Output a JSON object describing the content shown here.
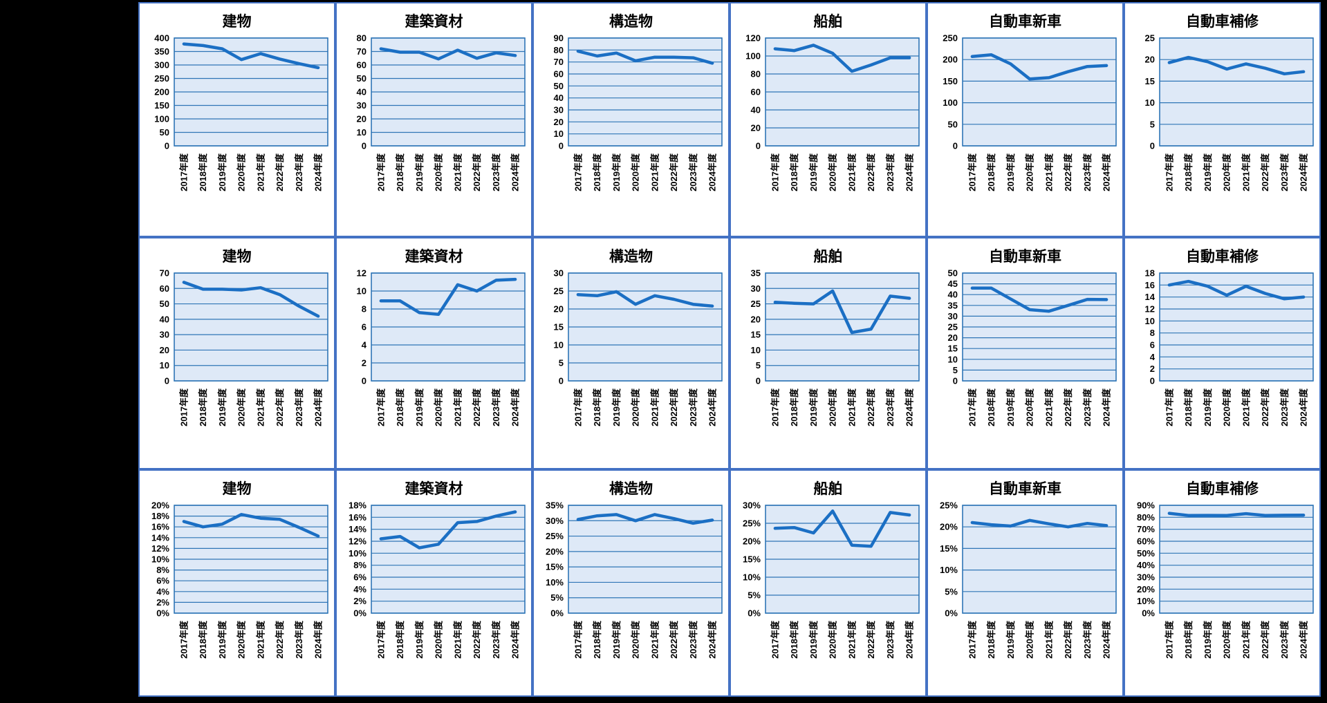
{
  "page": {
    "background_color": "#000000",
    "description": "3x6 grid of small line charts (Excel-style), black page background"
  },
  "colors": {
    "line": "#1B6FC4",
    "plot_fill": "#DEE9F7",
    "grid_line": "#2E75B6",
    "panel_border": "#4472C4",
    "panel_background": "#FFFFFF",
    "text": "#000000"
  },
  "chart_data": {
    "type": "line",
    "categories": [
      "2017年度",
      "2018年度",
      "2019年度",
      "2020年度",
      "2021年度",
      "2022年度",
      "2023年度",
      "2024年度"
    ],
    "legend_position": "none",
    "grid": "horizontal",
    "charts": [
      {
        "row": 0,
        "col": 0,
        "title": "建物",
        "unit": "",
        "ylim": [
          0,
          400
        ],
        "ystep": 50,
        "values": [
          378,
          372,
          360,
          320,
          342,
          322,
          305,
          290
        ]
      },
      {
        "row": 0,
        "col": 1,
        "title": "建築資材",
        "unit": "",
        "ylim": [
          0,
          80
        ],
        "ystep": 10,
        "values": [
          72,
          69.5,
          69.5,
          64.5,
          71,
          65,
          69,
          67
        ]
      },
      {
        "row": 0,
        "col": 2,
        "title": "構造物",
        "unit": "",
        "ylim": [
          0,
          90
        ],
        "ystep": 10,
        "values": [
          79,
          75,
          77.5,
          71,
          74,
          74,
          73.5,
          69
        ]
      },
      {
        "row": 0,
        "col": 3,
        "title": "船舶",
        "unit": "",
        "ylim": [
          0,
          120
        ],
        "ystep": 20,
        "values": [
          108,
          106,
          112,
          103,
          83,
          90,
          98,
          98
        ]
      },
      {
        "row": 0,
        "col": 4,
        "title": "自動車新車",
        "unit": "",
        "ylim": [
          0,
          250
        ],
        "ystep": 50,
        "values": [
          207,
          211,
          190,
          155,
          158,
          172,
          184,
          186
        ]
      },
      {
        "row": 0,
        "col": 5,
        "title": "自動車補修",
        "unit": "",
        "ylim": [
          0,
          25
        ],
        "ystep": 5,
        "values": [
          19.3,
          20.5,
          19.5,
          17.8,
          19,
          18,
          16.7,
          17.2
        ]
      },
      {
        "row": 1,
        "col": 0,
        "title": "建物",
        "unit": "",
        "ylim": [
          0,
          70
        ],
        "ystep": 10,
        "values": [
          64,
          59.5,
          59.5,
          59,
          60.5,
          56,
          48.5,
          42
        ]
      },
      {
        "row": 1,
        "col": 1,
        "title": "建築資材",
        "unit": "",
        "ylim": [
          0,
          12
        ],
        "ystep": 2,
        "values": [
          8.9,
          8.9,
          7.6,
          7.4,
          10.7,
          10,
          11.2,
          11.3
        ]
      },
      {
        "row": 1,
        "col": 2,
        "title": "構造物",
        "unit": "",
        "ylim": [
          0,
          30
        ],
        "ystep": 5,
        "values": [
          24,
          23.7,
          24.8,
          21.3,
          23.7,
          22.7,
          21.3,
          20.8
        ]
      },
      {
        "row": 1,
        "col": 3,
        "title": "船舶",
        "unit": "",
        "ylim": [
          0,
          35
        ],
        "ystep": 5,
        "values": [
          25.5,
          25.2,
          25,
          29.2,
          15.7,
          16.8,
          27.5,
          26.8
        ]
      },
      {
        "row": 1,
        "col": 4,
        "title": "自動車新車",
        "unit": "",
        "ylim": [
          0,
          50
        ],
        "ystep": 5,
        "values": [
          43,
          43,
          38,
          33,
          32.3,
          35,
          37.8,
          37.7
        ]
      },
      {
        "row": 1,
        "col": 5,
        "title": "自動車補修",
        "unit": "",
        "ylim": [
          0,
          18
        ],
        "ystep": 2,
        "values": [
          16,
          16.6,
          15.8,
          14.3,
          15.8,
          14.6,
          13.7,
          14
        ]
      },
      {
        "row": 2,
        "col": 0,
        "title": "建物",
        "unit": "%",
        "ylim": [
          0,
          20
        ],
        "ystep": 2,
        "values": [
          17,
          16,
          16.5,
          18.3,
          17.6,
          17.4,
          15.9,
          14.3
        ]
      },
      {
        "row": 2,
        "col": 1,
        "title": "建築資材",
        "unit": "%",
        "ylim": [
          0,
          18
        ],
        "ystep": 2,
        "values": [
          12.4,
          12.8,
          10.9,
          11.5,
          15.1,
          15.3,
          16.2,
          16.9
        ]
      },
      {
        "row": 2,
        "col": 2,
        "title": "構造物",
        "unit": "%",
        "ylim": [
          0,
          35
        ],
        "ystep": 5,
        "values": [
          30.4,
          31.6,
          32,
          30,
          32,
          30.7,
          29.2,
          30.2
        ]
      },
      {
        "row": 2,
        "col": 3,
        "title": "船舶",
        "unit": "%",
        "ylim": [
          0,
          30
        ],
        "ystep": 5,
        "values": [
          23.6,
          23.8,
          22.3,
          28.4,
          18.9,
          18.6,
          28,
          27.3
        ]
      },
      {
        "row": 2,
        "col": 4,
        "title": "自動車新車",
        "unit": "%",
        "ylim": [
          0,
          25
        ],
        "ystep": 5,
        "values": [
          21,
          20.5,
          20.2,
          21.5,
          20.7,
          20,
          20.8,
          20.3
        ]
      },
      {
        "row": 2,
        "col": 5,
        "title": "自動車補修",
        "unit": "%",
        "ylim": [
          0,
          90
        ],
        "ystep": 10,
        "values": [
          83.3,
          81.5,
          81.6,
          81.5,
          83,
          81.5,
          81.7,
          81.8
        ]
      }
    ]
  }
}
